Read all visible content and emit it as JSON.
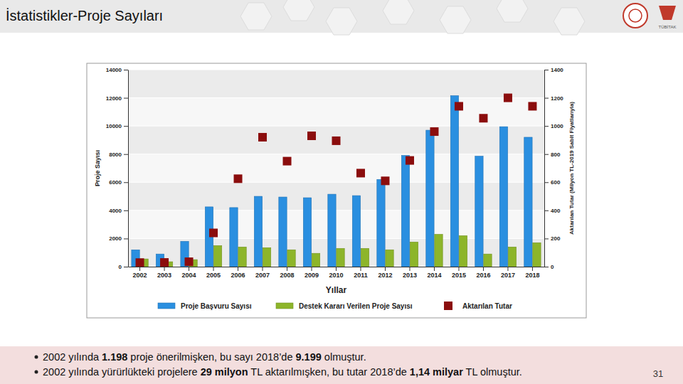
{
  "header": {
    "title": "İstatistikler-Proje Sayıları",
    "logo_text": "TÜBİTAK"
  },
  "chart_data": {
    "type": "bar",
    "x_label": "Yıllar",
    "y_label": "Proje Sayısı",
    "y2_label": "Aktarılan Tutar (Milyon TL-2019 Sabit Fiyatlarıyla)",
    "categories": [
      "2002",
      "2003",
      "2004",
      "2005",
      "2006",
      "2007",
      "2008",
      "2009",
      "2010",
      "2011",
      "2012",
      "2013",
      "2014",
      "2015",
      "2016",
      "2017",
      "2018"
    ],
    "ylim": [
      0,
      14000
    ],
    "yticks": [
      0,
      2000,
      4000,
      6000,
      8000,
      10000,
      12000,
      14000
    ],
    "y2lim": [
      0,
      1400
    ],
    "y2ticks": [
      0,
      200,
      400,
      600,
      800,
      1000,
      1200,
      1400
    ],
    "grid": true,
    "legend": "bottom",
    "series": [
      {
        "name": "Proje Başvuru Sayısı",
        "type": "bar",
        "color": "#2a8fe0",
        "values": [
          1198,
          900,
          1800,
          4250,
          4200,
          5000,
          4950,
          4900,
          5150,
          5050,
          6200,
          7900,
          9700,
          12150,
          7850,
          9950,
          9199
        ]
      },
      {
        "name": "Destek Kararı Verilen Proje Sayısı",
        "type": "bar",
        "color": "#8db52a",
        "values": [
          550,
          350,
          500,
          1500,
          1400,
          1350,
          1200,
          950,
          1300,
          1300,
          1200,
          1750,
          2300,
          2200,
          900,
          1400,
          1700
        ]
      },
      {
        "name": "Aktarılan Tutar",
        "type": "scatter",
        "axis": "y2",
        "marker": "square",
        "color": "#8b0d0d",
        "values": [
          29,
          30,
          35,
          240,
          625,
          920,
          750,
          930,
          895,
          665,
          610,
          755,
          960,
          1140,
          1055,
          1200,
          1140
        ]
      }
    ]
  },
  "notes": [
    [
      "2002 yılında ",
      "1.198",
      " proje önerilmişken, bu sayı 2018’de ",
      "9.199",
      " olmuştur."
    ],
    [
      "2002 yılında yürürlükteki projelere ",
      "29 milyon",
      " TL aktarılmışken, bu tutar 2018’de ",
      "1,14 milyar",
      " TL olmuştur."
    ]
  ],
  "page_number": "31"
}
